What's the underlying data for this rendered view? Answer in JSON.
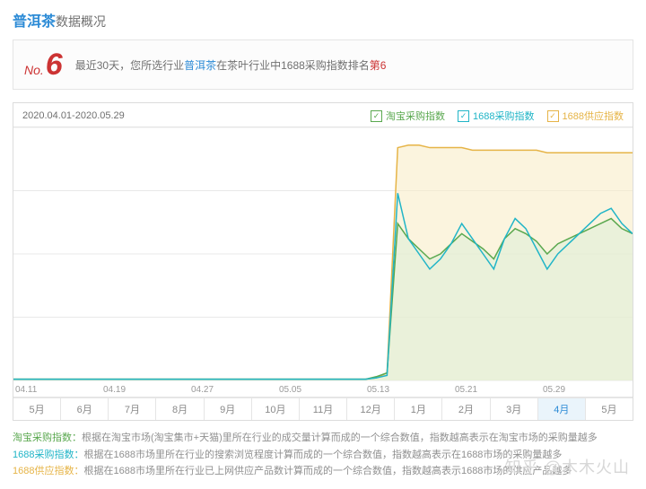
{
  "header": {
    "keyword": "普洱茶",
    "suffix": "数据概况"
  },
  "rank": {
    "prefix": "No.",
    "number": "6",
    "text_before": "最近30天，您所选行业",
    "kw": "普洱茶",
    "text_mid": "在茶叶行业中1688采购指数排名",
    "rank": "第6"
  },
  "chart": {
    "date_range": "2020.04.01-2020.05.29",
    "legends": [
      {
        "label": "淘宝采购指数",
        "color": "#5aa84f",
        "checked": true
      },
      {
        "label": "1688采购指数",
        "color": "#21b5c7",
        "checked": true
      },
      {
        "label": "1688供应指数",
        "color": "#e6b447",
        "checked": true
      }
    ],
    "x_dates": [
      "04.11",
      "04.19",
      "04.27",
      "05.05",
      "05.13",
      "05.21",
      "05.29"
    ],
    "months": [
      "5月",
      "6月",
      "7月",
      "8月",
      "9月",
      "10月",
      "11月",
      "12月",
      "1月",
      "2月",
      "3月",
      "4月",
      "5月"
    ],
    "month_active_idx": 11,
    "ylim": [
      0,
      100
    ],
    "grid_color": "#e9e9e9",
    "series": {
      "green": {
        "color": "#5aa84f",
        "fill": "#dceed7",
        "opacity": 0.55,
        "y": [
          0.5,
          0.5,
          0.5,
          0.5,
          0.5,
          0.5,
          0.5,
          0.5,
          0.5,
          0.5,
          0.5,
          0.5,
          0.5,
          0.5,
          0.5,
          0.5,
          0.5,
          0.5,
          0.5,
          0.5,
          0.5,
          0.5,
          0.5,
          0.5,
          0.5,
          0.5,
          0.5,
          0.5,
          0.5,
          0.5,
          0.5,
          0.5,
          0.5,
          0.5,
          1.5,
          3,
          62,
          56,
          52,
          48,
          50,
          54,
          58,
          55,
          52,
          48,
          56,
          60,
          58,
          55,
          50,
          54,
          56,
          58,
          60,
          62,
          64,
          60,
          58
        ]
      },
      "blue": {
        "color": "#21b5c7",
        "y": [
          0.5,
          0.5,
          0.5,
          0.5,
          0.5,
          0.5,
          0.5,
          0.5,
          0.5,
          0.5,
          0.5,
          0.5,
          0.5,
          0.5,
          0.5,
          0.5,
          0.5,
          0.5,
          0.5,
          0.5,
          0.5,
          0.5,
          0.5,
          0.5,
          0.5,
          0.5,
          0.5,
          0.5,
          0.5,
          0.5,
          0.5,
          0.5,
          0.5,
          0.5,
          1,
          2,
          74,
          56,
          50,
          44,
          48,
          54,
          62,
          56,
          50,
          44,
          56,
          64,
          60,
          52,
          44,
          50,
          54,
          58,
          62,
          66,
          68,
          62,
          58
        ]
      },
      "orange": {
        "color": "#e6b447",
        "fill": "#f7ebc3",
        "opacity": 0.55,
        "y": [
          0.5,
          0.5,
          0.5,
          0.5,
          0.5,
          0.5,
          0.5,
          0.5,
          0.5,
          0.5,
          0.5,
          0.5,
          0.5,
          0.5,
          0.5,
          0.5,
          0.5,
          0.5,
          0.5,
          0.5,
          0.5,
          0.5,
          0.5,
          0.5,
          0.5,
          0.5,
          0.5,
          0.5,
          0.5,
          0.5,
          0.5,
          0.5,
          0.5,
          0.5,
          1,
          3,
          92,
          93,
          93,
          92,
          92,
          92,
          92,
          91,
          91,
          91,
          91,
          91,
          91,
          91,
          90,
          90,
          90,
          90,
          90,
          90,
          90,
          90,
          90
        ]
      }
    }
  },
  "footnotes": [
    {
      "cls": "green",
      "label": "淘宝采购指数：",
      "text": "根据在淘宝市场(淘宝集市+天猫)里所在行业的成交量计算而成的一个综合数值，指数越高表示在淘宝市场的采购量越多"
    },
    {
      "cls": "blue",
      "label": "1688采购指数：",
      "text": "根据在1688市场里所在行业的搜索浏览程度计算而成的一个综合数值，指数越高表示在1688市场的采购量越多"
    },
    {
      "cls": "orange",
      "label": "1688供应指数：",
      "text": "根据在1688市场里所在行业已上网供应产品数计算而成的一个综合数值，指数越高表示1688市场的供应产品越多"
    }
  ],
  "watermark": "知乎 @木木火山"
}
